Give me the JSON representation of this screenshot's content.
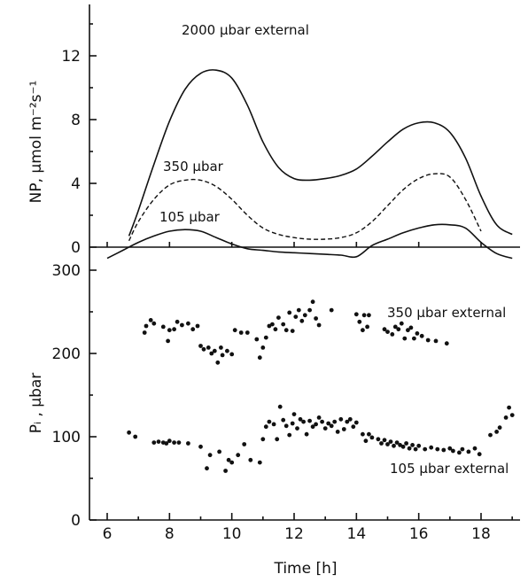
{
  "chart_data": [
    {
      "type": "line",
      "ylabel": "NP, µmol m⁻²s⁻¹",
      "xlabel": "",
      "xlim": [
        5.5,
        19.4
      ],
      "ylim": [
        0,
        14.5
      ],
      "yticks": [
        0,
        4,
        8,
        12
      ],
      "series": [
        {
          "name": "2000 µbar external",
          "style": "solid",
          "x": [
            6.7,
            7.0,
            7.5,
            8.0,
            8.5,
            9.0,
            9.5,
            10.0,
            10.5,
            11.0,
            11.5,
            12.0,
            12.5,
            13.0,
            13.5,
            14.0,
            14.5,
            15.0,
            15.5,
            16.0,
            16.5,
            17.0,
            17.5,
            18.0,
            18.5,
            19.0
          ],
          "y": [
            0.7,
            2.3,
            5.2,
            7.9,
            9.9,
            10.9,
            11.1,
            10.6,
            8.9,
            6.6,
            5.0,
            4.3,
            4.2,
            4.3,
            4.5,
            4.9,
            5.7,
            6.6,
            7.4,
            7.8,
            7.8,
            7.2,
            5.6,
            3.2,
            1.4,
            0.8
          ]
        },
        {
          "name": "350 µbar",
          "style": "dashed",
          "x": [
            6.7,
            7.0,
            7.5,
            8.0,
            8.5,
            9.0,
            9.5,
            10.0,
            10.5,
            11.0,
            11.5,
            12.0,
            12.5,
            13.0,
            13.5,
            14.0,
            14.5,
            15.0,
            15.5,
            16.0,
            16.5,
            17.0,
            17.5,
            18.0
          ],
          "y": [
            0.4,
            1.6,
            3.0,
            3.9,
            4.2,
            4.2,
            3.8,
            3.0,
            2.0,
            1.2,
            0.8,
            0.6,
            0.5,
            0.5,
            0.6,
            0.9,
            1.6,
            2.6,
            3.6,
            4.3,
            4.6,
            4.4,
            3.0,
            1.0
          ]
        },
        {
          "name": "105 µbar",
          "style": "solid",
          "x": [
            6.0,
            6.5,
            7.0,
            7.5,
            8.0,
            8.5,
            9.0,
            9.5,
            10.0,
            10.5,
            11.0,
            11.5,
            12.0,
            12.5,
            13.0,
            13.5,
            14.0,
            14.5,
            15.0,
            15.5,
            16.0,
            16.5,
            17.0,
            17.5,
            18.0,
            18.5,
            19.0
          ],
          "y": [
            -0.7,
            -0.2,
            0.3,
            0.7,
            1.0,
            1.1,
            1.0,
            0.6,
            0.2,
            -0.1,
            -0.2,
            -0.3,
            -0.35,
            -0.4,
            -0.45,
            -0.5,
            -0.6,
            0.1,
            0.5,
            0.9,
            1.2,
            1.4,
            1.4,
            1.2,
            0.3,
            -0.4,
            -0.7
          ]
        }
      ],
      "annotations": [
        "2000 µbar external",
        "350 µbar",
        "105 µbar"
      ]
    },
    {
      "type": "scatter",
      "ylabel": "Pᵢ , µbar",
      "xlabel": "Time [h]",
      "xlim": [
        5.5,
        19.4
      ],
      "xticks": [
        6,
        8,
        10,
        12,
        14,
        16,
        18
      ],
      "ylim": [
        0,
        320
      ],
      "yticks": [
        0,
        100,
        200,
        300
      ],
      "series": [
        {
          "name": "350 µbar external",
          "points": [
            [
              7.2,
              225
            ],
            [
              7.25,
              233
            ],
            [
              7.4,
              240
            ],
            [
              7.5,
              236
            ],
            [
              7.8,
              232
            ],
            [
              7.95,
              215
            ],
            [
              8.0,
              228
            ],
            [
              8.15,
              229
            ],
            [
              8.25,
              238
            ],
            [
              8.4,
              234
            ],
            [
              8.6,
              236
            ],
            [
              8.75,
              229
            ],
            [
              8.9,
              233
            ],
            [
              9.0,
              209
            ],
            [
              9.1,
              205
            ],
            [
              9.25,
              207
            ],
            [
              9.35,
              200
            ],
            [
              9.45,
              203
            ],
            [
              9.55,
              189
            ],
            [
              9.65,
              207
            ],
            [
              9.7,
              198
            ],
            [
              9.85,
              203
            ],
            [
              10.0,
              199
            ],
            [
              10.1,
              228
            ],
            [
              10.3,
              225
            ],
            [
              10.5,
              225
            ],
            [
              10.8,
              217
            ],
            [
              10.9,
              195
            ],
            [
              11.0,
              207
            ],
            [
              11.1,
              219
            ],
            [
              11.2,
              233
            ],
            [
              11.3,
              235
            ],
            [
              11.4,
              229
            ],
            [
              11.5,
              243
            ],
            [
              11.65,
              235
            ],
            [
              11.75,
              228
            ],
            [
              11.85,
              249
            ],
            [
              11.95,
              227
            ],
            [
              12.05,
              244
            ],
            [
              12.15,
              252
            ],
            [
              12.25,
              239
            ],
            [
              12.35,
              246
            ],
            [
              12.5,
              252
            ],
            [
              12.6,
              262
            ],
            [
              12.7,
              242
            ],
            [
              12.8,
              234
            ],
            [
              13.2,
              252
            ],
            [
              14.0,
              247
            ],
            [
              14.1,
              238
            ],
            [
              14.2,
              228
            ],
            [
              14.25,
              246
            ],
            [
              14.35,
              232
            ],
            [
              14.4,
              246
            ],
            [
              14.9,
              229
            ],
            [
              15.0,
              226
            ],
            [
              15.15,
              223
            ],
            [
              15.25,
              232
            ],
            [
              15.35,
              229
            ],
            [
              15.45,
              236
            ],
            [
              15.55,
              218
            ],
            [
              15.65,
              228
            ],
            [
              15.75,
              231
            ],
            [
              15.85,
              218
            ],
            [
              15.95,
              224
            ],
            [
              16.1,
              221
            ],
            [
              16.3,
              216
            ],
            [
              16.55,
              215
            ],
            [
              16.9,
              212
            ]
          ]
        },
        {
          "name": "105 µbar external",
          "points": [
            [
              6.7,
              105
            ],
            [
              6.9,
              100
            ],
            [
              7.5,
              93
            ],
            [
              7.65,
              94
            ],
            [
              7.8,
              93
            ],
            [
              7.9,
              92
            ],
            [
              8.0,
              95
            ],
            [
              8.15,
              93
            ],
            [
              8.3,
              93
            ],
            [
              8.6,
              92
            ],
            [
              9.0,
              88
            ],
            [
              9.2,
              62
            ],
            [
              9.3,
              78
            ],
            [
              9.6,
              82
            ],
            [
              9.8,
              59
            ],
            [
              9.9,
              72
            ],
            [
              10.0,
              69
            ],
            [
              10.2,
              78
            ],
            [
              10.4,
              91
            ],
            [
              10.6,
              72
            ],
            [
              10.9,
              69
            ],
            [
              11.0,
              97
            ],
            [
              11.1,
              112
            ],
            [
              11.2,
              118
            ],
            [
              11.35,
              115
            ],
            [
              11.45,
              97
            ],
            [
              11.55,
              136
            ],
            [
              11.65,
              120
            ],
            [
              11.75,
              113
            ],
            [
              11.85,
              102
            ],
            [
              11.95,
              116
            ],
            [
              12.0,
              127
            ],
            [
              12.1,
              110
            ],
            [
              12.2,
              121
            ],
            [
              12.3,
              118
            ],
            [
              12.4,
              103
            ],
            [
              12.5,
              119
            ],
            [
              12.6,
              112
            ],
            [
              12.7,
              115
            ],
            [
              12.8,
              123
            ],
            [
              12.9,
              118
            ],
            [
              13.0,
              110
            ],
            [
              13.1,
              116
            ],
            [
              13.2,
              113
            ],
            [
              13.3,
              118
            ],
            [
              13.4,
              106
            ],
            [
              13.5,
              121
            ],
            [
              13.6,
              109
            ],
            [
              13.7,
              118
            ],
            [
              13.8,
              121
            ],
            [
              13.9,
              112
            ],
            [
              14.0,
              117
            ],
            [
              14.2,
              103
            ],
            [
              14.3,
              95
            ],
            [
              14.4,
              103
            ],
            [
              14.5,
              99
            ],
            [
              14.7,
              97
            ],
            [
              14.8,
              92
            ],
            [
              14.9,
              96
            ],
            [
              15.0,
              91
            ],
            [
              15.1,
              94
            ],
            [
              15.2,
              89
            ],
            [
              15.3,
              93
            ],
            [
              15.4,
              90
            ],
            [
              15.5,
              88
            ],
            [
              15.6,
              92
            ],
            [
              15.7,
              86
            ],
            [
              15.8,
              90
            ],
            [
              15.9,
              85
            ],
            [
              16.0,
              89
            ],
            [
              16.2,
              85
            ],
            [
              16.4,
              87
            ],
            [
              16.6,
              85
            ],
            [
              16.8,
              84
            ],
            [
              17.0,
              86
            ],
            [
              17.1,
              83
            ],
            [
              17.3,
              81
            ],
            [
              17.4,
              85
            ],
            [
              17.6,
              82
            ],
            [
              17.8,
              86
            ],
            [
              17.95,
              79
            ],
            [
              18.3,
              102
            ],
            [
              18.5,
              106
            ],
            [
              18.6,
              111
            ],
            [
              18.8,
              123
            ],
            [
              18.9,
              135
            ],
            [
              19.0,
              126
            ]
          ]
        }
      ],
      "annotations": [
        "350 µbar external",
        "105 µbar external"
      ]
    }
  ]
}
